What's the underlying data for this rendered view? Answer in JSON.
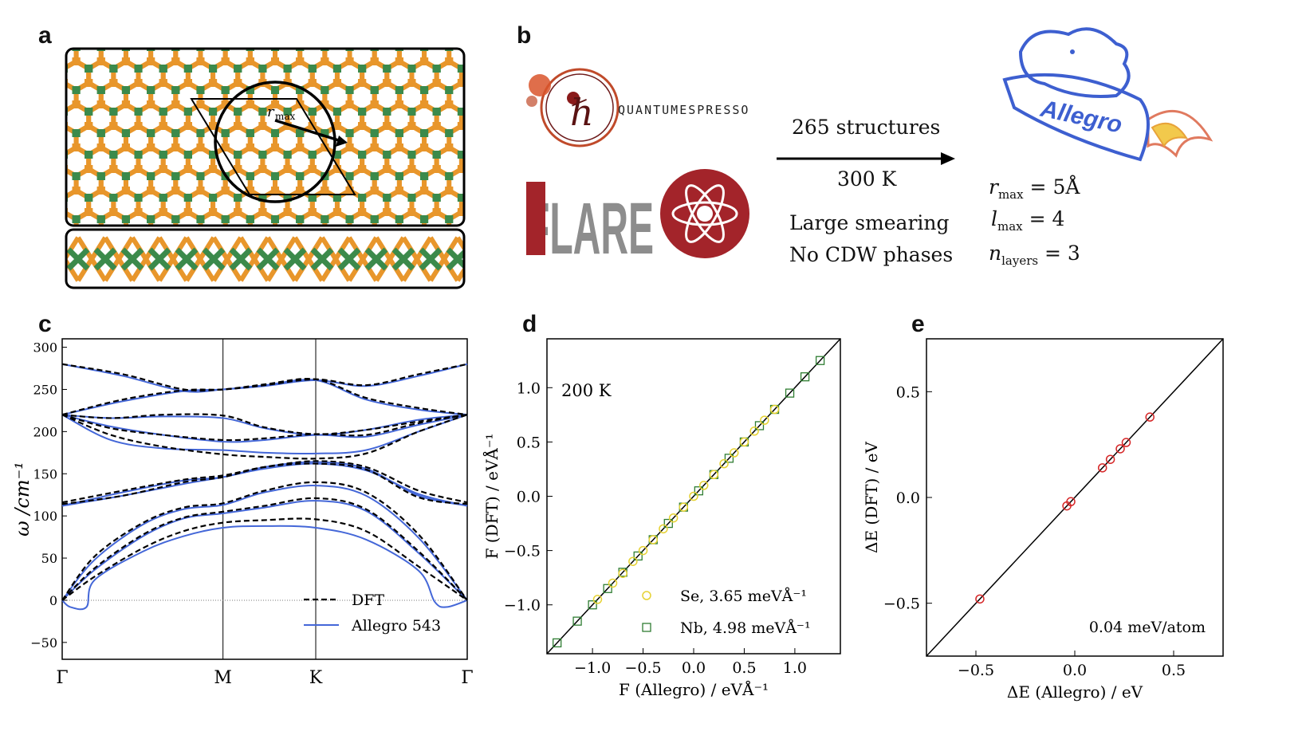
{
  "panels": {
    "a": "a",
    "b": "b",
    "c": "c",
    "d": "d",
    "e": "e"
  },
  "panel_a": {
    "rmax_label": "r",
    "rmax_sub": "max"
  },
  "panel_b": {
    "qe_logo": "QUANTUMESPRESSO",
    "flare_logo": "FLARE",
    "structures": "265 structures",
    "temperature": "300 K",
    "note1": "Large smearing",
    "note2": "No CDW phases",
    "allegro_logo": "Allegro",
    "params": [
      {
        "sym": "r",
        "sub": "max",
        "val": "= 5Å"
      },
      {
        "sym": "l",
        "sub": "max",
        "val": "= 4"
      },
      {
        "sym": "n",
        "sub": "layers",
        "val": "= 3"
      }
    ]
  },
  "colors": {
    "dft": "#000000",
    "allegro": "#4467d8",
    "se": "#e6d233",
    "nb": "#2f7d32",
    "parity": "#d62728",
    "se_atom": "#e8962b",
    "nb_atom": "#3b8a4b"
  },
  "chart_data": [
    {
      "type": "line",
      "panel": "c",
      "ylabel": "ω /cm⁻¹",
      "ylim": [
        -70,
        310
      ],
      "yticks": [
        -50,
        0,
        50,
        100,
        150,
        200,
        250,
        300
      ],
      "xticks": [
        "Γ",
        "M",
        "K",
        "Γ"
      ],
      "xtick_pos": [
        0,
        0.397,
        0.626,
        1.0
      ],
      "legend": [
        "DFT",
        "Allegro 543"
      ],
      "legend_position": "bottom-right",
      "series": [
        {
          "name": "DFT",
          "style": "dashed",
          "bands": [
            {
              "x": [
                0,
                0.08,
                0.2,
                0.3,
                0.397,
                0.5,
                0.626,
                0.75,
                0.88,
                1
              ],
              "y": [
                0,
                28,
                62,
                82,
                92,
                95,
                96,
                82,
                40,
                0
              ]
            },
            {
              "x": [
                0,
                0.08,
                0.2,
                0.3,
                0.397,
                0.5,
                0.626,
                0.75,
                0.88,
                1
              ],
              "y": [
                0,
                38,
                78,
                98,
                105,
                112,
                121,
                108,
                58,
                0
              ]
            },
            {
              "x": [
                0,
                0.08,
                0.2,
                0.3,
                0.397,
                0.5,
                0.626,
                0.75,
                0.88,
                1
              ],
              "y": [
                0,
                52,
                92,
                110,
                115,
                130,
                140,
                128,
                78,
                0
              ]
            },
            {
              "x": [
                0,
                0.15,
                0.3,
                0.397,
                0.5,
                0.626,
                0.75,
                0.88,
                1
              ],
              "y": [
                116,
                130,
                143,
                148,
                158,
                165,
                158,
                130,
                116
              ]
            },
            {
              "x": [
                0,
                0.15,
                0.3,
                0.397,
                0.5,
                0.626,
                0.75,
                0.88,
                1
              ],
              "y": [
                114,
                124,
                140,
                146,
                158,
                162,
                155,
                122,
                114
              ]
            },
            {
              "x": [
                0,
                0.12,
                0.25,
                0.397,
                0.5,
                0.626,
                0.75,
                0.88,
                1
              ],
              "y": [
                220,
                196,
                182,
                173,
                170,
                168,
                174,
                200,
                220
              ]
            },
            {
              "x": [
                0,
                0.12,
                0.25,
                0.397,
                0.5,
                0.626,
                0.75,
                0.88,
                1
              ],
              "y": [
                220,
                204,
                196,
                190,
                192,
                197,
                196,
                210,
                220
              ]
            },
            {
              "x": [
                0,
                0.12,
                0.25,
                0.397,
                0.5,
                0.626,
                0.75,
                0.88,
                1
              ],
              "y": [
                220,
                216,
                220,
                219,
                205,
                197,
                202,
                212,
                220
              ]
            },
            {
              "x": [
                0,
                0.15,
                0.3,
                0.397,
                0.5,
                0.626,
                0.75,
                0.88,
                1
              ],
              "y": [
                280,
                268,
                250,
                250,
                255,
                262,
                255,
                268,
                280
              ]
            },
            {
              "x": [
                0,
                0.15,
                0.3,
                0.397,
                0.5,
                0.626,
                0.75,
                0.88,
                1
              ],
              "y": [
                220,
                238,
                249,
                250,
                256,
                262,
                240,
                228,
                220
              ]
            }
          ]
        },
        {
          "name": "Allegro 543",
          "style": "solid",
          "bands": [
            {
              "x": [
                0,
                0.02,
                0.06,
                0.08,
                0.2,
                0.3,
                0.397,
                0.5,
                0.626,
                0.75,
                0.88,
                0.92,
                0.95,
                1
              ],
              "y": [
                0,
                -8,
                -8,
                24,
                58,
                76,
                86,
                88,
                86,
                72,
                35,
                -2,
                -8,
                0
              ]
            },
            {
              "x": [
                0,
                0.08,
                0.2,
                0.3,
                0.397,
                0.5,
                0.626,
                0.75,
                0.88,
                1
              ],
              "y": [
                0,
                36,
                76,
                97,
                103,
                110,
                118,
                106,
                56,
                0
              ]
            },
            {
              "x": [
                0,
                0.08,
                0.2,
                0.3,
                0.397,
                0.5,
                0.626,
                0.75,
                0.88,
                1
              ],
              "y": [
                0,
                48,
                90,
                108,
                113,
                128,
                136,
                124,
                74,
                0
              ]
            },
            {
              "x": [
                0,
                0.15,
                0.3,
                0.397,
                0.5,
                0.626,
                0.75,
                0.88,
                1
              ],
              "y": [
                112,
                124,
                138,
                146,
                156,
                162,
                154,
                126,
                112
              ]
            },
            {
              "x": [
                0,
                0.15,
                0.3,
                0.397,
                0.5,
                0.626,
                0.75,
                0.88,
                1
              ],
              "y": [
                112,
                128,
                142,
                146,
                158,
                164,
                156,
                124,
                112
              ]
            },
            {
              "x": [
                0,
                0.12,
                0.25,
                0.397,
                0.5,
                0.626,
                0.75,
                0.88,
                1
              ],
              "y": [
                220,
                190,
                180,
                178,
                175,
                174,
                178,
                200,
                220
              ]
            },
            {
              "x": [
                0,
                0.12,
                0.25,
                0.397,
                0.5,
                0.626,
                0.75,
                0.88,
                1
              ],
              "y": [
                220,
                206,
                196,
                188,
                190,
                196,
                194,
                208,
                220
              ]
            },
            {
              "x": [
                0,
                0.12,
                0.25,
                0.397,
                0.5,
                0.626,
                0.75,
                0.88,
                1
              ],
              "y": [
                220,
                216,
                218,
                216,
                204,
                196,
                202,
                214,
                220
              ]
            },
            {
              "x": [
                0,
                0.15,
                0.3,
                0.397,
                0.5,
                0.626,
                0.75,
                0.88,
                1
              ],
              "y": [
                280,
                266,
                248,
                250,
                254,
                261,
                254,
                266,
                280
              ]
            },
            {
              "x": [
                0,
                0.15,
                0.3,
                0.397,
                0.5,
                0.626,
                0.75,
                0.88,
                1
              ],
              "y": [
                220,
                236,
                248,
                250,
                255,
                261,
                238,
                226,
                220
              ]
            }
          ]
        }
      ]
    },
    {
      "type": "scatter",
      "panel": "d",
      "xlabel": "F (Allegro) / eVÅ⁻¹",
      "ylabel": "F (DFT) / eVÅ⁻¹",
      "xlim": [
        -1.45,
        1.45
      ],
      "ylim": [
        -1.45,
        1.45
      ],
      "xticks": [
        -1.0,
        -0.5,
        0.0,
        0.5,
        1.0
      ],
      "yticks": [
        -1.0,
        -0.5,
        0.0,
        0.5,
        1.0
      ],
      "xtick_labels": [
        "−1.0",
        "−0.5",
        "0.0",
        "0.5",
        "1.0"
      ],
      "ytick_labels": [
        "−1.0",
        "−0.5",
        "0.0",
        "0.5",
        "1.0"
      ],
      "annotation": "200 K",
      "legend_position": "bottom-right",
      "series": [
        {
          "name": "Se, 3.65 meVÅ⁻¹",
          "marker": "circle",
          "x": [
            -0.95,
            -0.8,
            -0.7,
            -0.6,
            -0.5,
            -0.4,
            -0.3,
            -0.2,
            -0.1,
            0.0,
            0.1,
            0.2,
            0.3,
            0.4,
            0.5,
            0.6,
            0.7,
            0.8
          ],
          "y": [
            -0.95,
            -0.8,
            -0.71,
            -0.6,
            -0.5,
            -0.4,
            -0.3,
            -0.2,
            -0.1,
            0.0,
            0.1,
            0.2,
            0.3,
            0.4,
            0.5,
            0.6,
            0.7,
            0.8
          ]
        },
        {
          "name": "Nb, 4.98 meVÅ⁻¹",
          "marker": "square",
          "x": [
            -1.35,
            -1.15,
            -1.0,
            -0.85,
            -0.7,
            -0.55,
            -0.4,
            -0.25,
            -0.1,
            0.05,
            0.2,
            0.35,
            0.5,
            0.65,
            0.8,
            0.95,
            1.1,
            1.25
          ],
          "y": [
            -1.35,
            -1.15,
            -1.0,
            -0.85,
            -0.7,
            -0.55,
            -0.4,
            -0.25,
            -0.1,
            0.05,
            0.2,
            0.35,
            0.5,
            0.65,
            0.8,
            0.95,
            1.1,
            1.25
          ]
        }
      ]
    },
    {
      "type": "scatter",
      "panel": "e",
      "xlabel": "ΔE (Allegro) / eV",
      "ylabel": "ΔE (DFT) / eV",
      "xlim": [
        -0.75,
        0.75
      ],
      "ylim": [
        -0.75,
        0.75
      ],
      "xticks": [
        -0.5,
        0.0,
        0.5
      ],
      "yticks": [
        -0.5,
        0.0,
        0.5
      ],
      "xtick_labels": [
        "−0.5",
        "0.0",
        "0.5"
      ],
      "ytick_labels": [
        "−0.5",
        "0.0",
        "0.5"
      ],
      "annotation": "0.04 meV/atom",
      "series": [
        {
          "marker": "circle",
          "x": [
            -0.48,
            -0.04,
            -0.02,
            0.14,
            0.18,
            0.23,
            0.26,
            0.38
          ],
          "y": [
            -0.48,
            -0.04,
            -0.02,
            0.14,
            0.18,
            0.23,
            0.26,
            0.38
          ]
        }
      ]
    }
  ]
}
